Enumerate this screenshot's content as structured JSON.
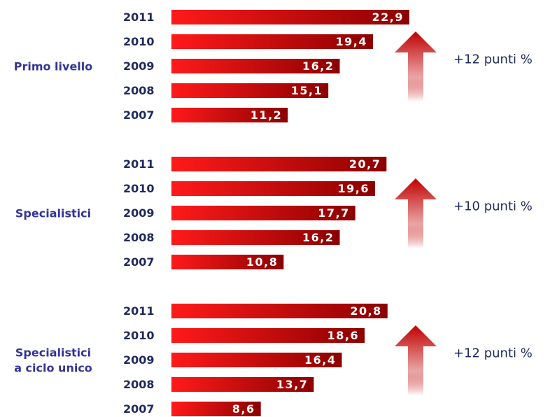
{
  "chart_data": {
    "type": "bar",
    "orientation": "horizontal",
    "title": "",
    "xlabel": "",
    "ylabel": "",
    "xlim": [
      0,
      25
    ],
    "grid": false,
    "legend": "none",
    "years": [
      "2011",
      "2010",
      "2009",
      "2008",
      "2007"
    ],
    "groups": [
      {
        "label_lines": [
          "Primo livello"
        ],
        "values": [
          22.9,
          19.4,
          16.2,
          15.1,
          11.2
        ],
        "value_labels": [
          "22,9",
          "19,4",
          "16,2",
          "15,1",
          "11,2"
        ],
        "increase_label": "+12 punti %"
      },
      {
        "label_lines": [
          "Specialistici"
        ],
        "values": [
          20.7,
          19.6,
          17.7,
          16.2,
          10.8
        ],
        "value_labels": [
          "20,7",
          "19,6",
          "17,7",
          "16,2",
          "10,8"
        ],
        "increase_label": "+10 punti %"
      },
      {
        "label_lines": [
          "Specialistici",
          "a ciclo unico"
        ],
        "values": [
          20.8,
          18.6,
          16.4,
          13.7,
          8.6
        ],
        "value_labels": [
          "20,8",
          "18,6",
          "16,4",
          "13,7",
          "8,6"
        ],
        "increase_label": "+12 punti %"
      }
    ]
  },
  "colors": {
    "bar_dark": "#8c0000",
    "bar_light": "#ff1a1a",
    "arrow": "#c10000",
    "group_label": "#333399",
    "year_label": "#1f2a5c",
    "value_label": "#ffffff",
    "increase_label": "#1f2a5c"
  }
}
